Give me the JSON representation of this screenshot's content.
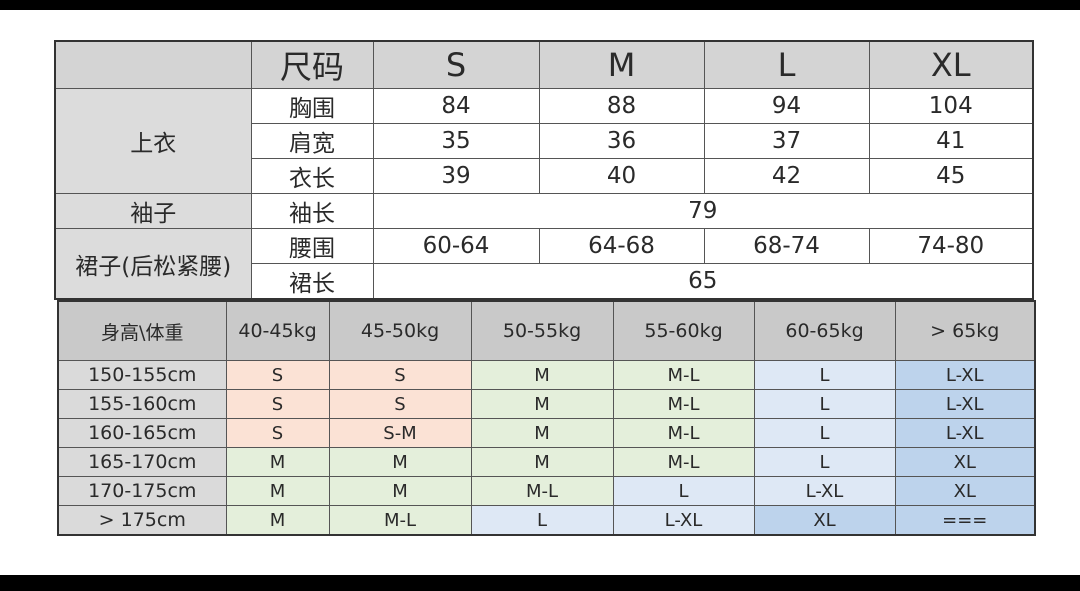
{
  "size_table": {
    "header": {
      "label": "尺码",
      "sizes": [
        "S",
        "M",
        "L",
        "XL"
      ]
    },
    "top": {
      "category": "上衣",
      "rows": [
        {
          "label": "胸围",
          "values": [
            "84",
            "88",
            "94",
            "104"
          ]
        },
        {
          "label": "肩宽",
          "values": [
            "35",
            "36",
            "37",
            "41"
          ]
        },
        {
          "label": "衣长",
          "values": [
            "39",
            "40",
            "42",
            "45"
          ]
        }
      ]
    },
    "sleeve": {
      "category": "袖子",
      "label": "袖长",
      "value": "79"
    },
    "skirt": {
      "category": "裙子(后松紧腰)",
      "rows": [
        {
          "label": "腰围",
          "values": [
            "60-64",
            "64-68",
            "68-74",
            "74-80"
          ]
        },
        {
          "label": "裙长",
          "value": "65"
        }
      ]
    }
  },
  "recommend_table": {
    "corner": "身高\\体重",
    "weights": [
      "40-45kg",
      "45-50kg",
      "50-55kg",
      "55-60kg",
      "60-65kg",
      "> 65kg"
    ],
    "rows": [
      {
        "height": "150-155cm",
        "sizes": [
          "S",
          "S",
          "M",
          "M-L",
          "L",
          "L-XL"
        ],
        "colors": [
          "p",
          "p",
          "g",
          "g",
          "b",
          "d"
        ]
      },
      {
        "height": "155-160cm",
        "sizes": [
          "S",
          "S",
          "M",
          "M-L",
          "L",
          "L-XL"
        ],
        "colors": [
          "p",
          "p",
          "g",
          "g",
          "b",
          "d"
        ]
      },
      {
        "height": "160-165cm",
        "sizes": [
          "S",
          "S-M",
          "M",
          "M-L",
          "L",
          "L-XL"
        ],
        "colors": [
          "p",
          "p",
          "g",
          "g",
          "b",
          "d"
        ]
      },
      {
        "height": "165-170cm",
        "sizes": [
          "M",
          "M",
          "M",
          "M-L",
          "L",
          "XL"
        ],
        "colors": [
          "g",
          "g",
          "g",
          "g",
          "b",
          "d"
        ]
      },
      {
        "height": "170-175cm",
        "sizes": [
          "M",
          "M",
          "M-L",
          "L",
          "L-XL",
          "XL"
        ],
        "colors": [
          "g",
          "g",
          "g",
          "b",
          "b",
          "d"
        ]
      },
      {
        "height": "> 175cm",
        "sizes": [
          "M",
          "M-L",
          "L",
          "L-XL",
          "XL",
          "==="
        ],
        "colors": [
          "g",
          "g",
          "b",
          "b",
          "d",
          "d"
        ]
      }
    ],
    "color_key": {
      "p": "#fbe2d5",
      "g": "#e4efdb",
      "b": "#dee8f5",
      "d": "#bdd3ec"
    }
  }
}
